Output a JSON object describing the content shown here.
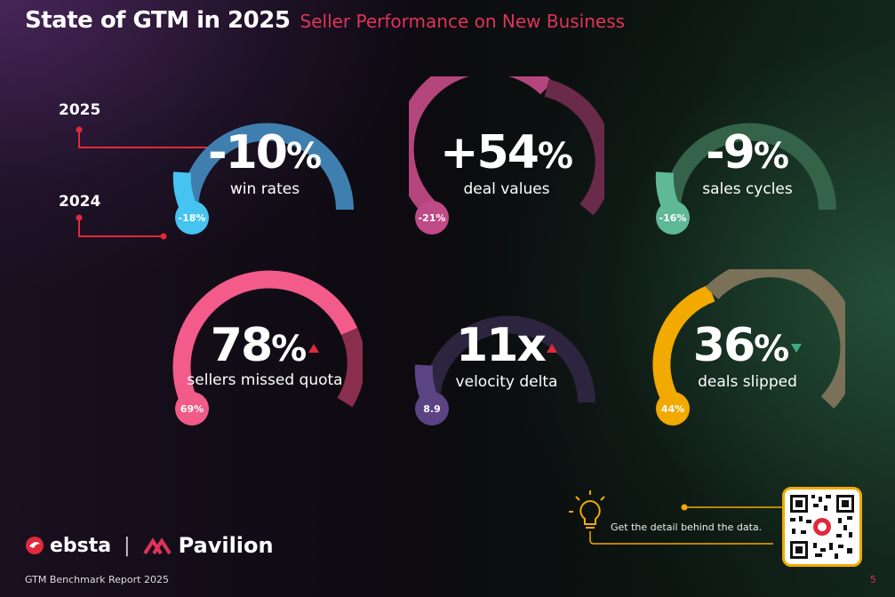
{
  "header": {
    "title": "State of GTM in 2025",
    "subtitle": "Seller Performance on New Business"
  },
  "legend": {
    "current_year": "2025",
    "previous_year": "2024"
  },
  "colors": {
    "accent": "#e0335a"
  },
  "metrics": [
    {
      "value": "-10",
      "unit": "%",
      "label": "win rates",
      "previous": "-18%",
      "arc_color": "#3f7fb0",
      "badge_color": "#45c4f1",
      "trend": ""
    },
    {
      "value": "+54",
      "unit": "%",
      "label": "deal values",
      "previous": "-21%",
      "arc_color": "#b5457d",
      "badge_color": "#c04a86",
      "trend": ""
    },
    {
      "value": "-9",
      "unit": "%",
      "label": "sales cycles",
      "previous": "-16%",
      "arc_color": "#34634a",
      "badge_color": "#5fb897",
      "trend": ""
    },
    {
      "value": "78",
      "unit": "%",
      "label": "sellers missed quota",
      "previous": "69%",
      "arc_color": "#f25b8a",
      "badge_color": "#f05b88",
      "trend": "up"
    },
    {
      "value": "11x",
      "unit": "",
      "label": "velocity delta",
      "previous": "8.9",
      "arc_color": "#2d2440",
      "badge_color": "#5b4384",
      "trend": "up"
    },
    {
      "value": "36",
      "unit": "%",
      "label": "deals slipped",
      "previous": "44%",
      "arc_color": "#7a7158",
      "badge_color": "#f2a900",
      "trend": "down"
    }
  ],
  "footer": {
    "ebsta": "ebsta",
    "separator": "|",
    "pavilion": "Pavilion",
    "report": "GTM Benchmark Report 2025",
    "page": "5",
    "cta": "Get the detail behind the data."
  }
}
